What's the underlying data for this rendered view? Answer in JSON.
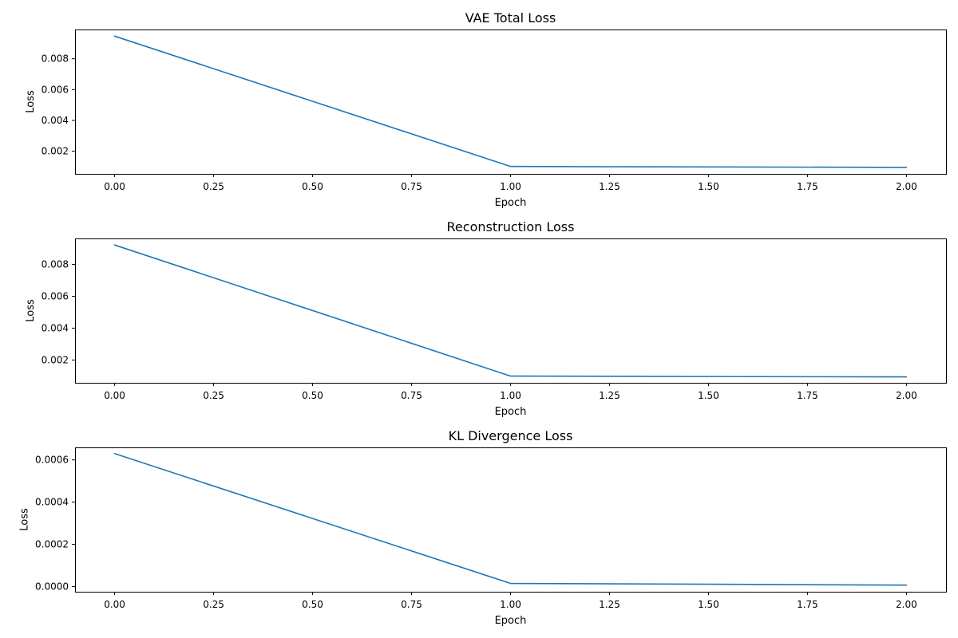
{
  "chart_data": [
    {
      "type": "line",
      "title": "VAE Total Loss",
      "xlabel": "Epoch",
      "ylabel": "Loss",
      "x": [
        0,
        1,
        2
      ],
      "series": [
        {
          "values": [
            0.00947,
            0.00101,
            0.00095
          ]
        }
      ],
      "xlim": [
        -0.1,
        2.1
      ],
      "ylim": [
        0.00053,
        0.0099
      ],
      "xticks": [
        0.0,
        0.25,
        0.5,
        0.75,
        1.0,
        1.25,
        1.5,
        1.75,
        2.0
      ],
      "xtick_labels": [
        "0.00",
        "0.25",
        "0.50",
        "0.75",
        "1.00",
        "1.25",
        "1.50",
        "1.75",
        "2.00"
      ],
      "yticks": [
        0.002,
        0.004,
        0.006,
        0.008
      ],
      "ytick_labels": [
        "0.002",
        "0.004",
        "0.006",
        "0.008"
      ],
      "grid": false,
      "line_color": "#1f77b4"
    },
    {
      "type": "line",
      "title": "Reconstruction Loss",
      "xlabel": "Epoch",
      "ylabel": "Loss",
      "x": [
        0,
        1,
        2
      ],
      "series": [
        {
          "values": [
            0.00922,
            0.00099,
            0.00094
          ]
        }
      ],
      "xlim": [
        -0.1,
        2.1
      ],
      "ylim": [
        0.00057,
        0.00963
      ],
      "xticks": [
        0.0,
        0.25,
        0.5,
        0.75,
        1.0,
        1.25,
        1.5,
        1.75,
        2.0
      ],
      "xtick_labels": [
        "0.00",
        "0.25",
        "0.50",
        "0.75",
        "1.00",
        "1.25",
        "1.50",
        "1.75",
        "2.00"
      ],
      "yticks": [
        0.002,
        0.004,
        0.006,
        0.008
      ],
      "ytick_labels": [
        "0.002",
        "0.004",
        "0.006",
        "0.008"
      ],
      "grid": false,
      "line_color": "#1f77b4"
    },
    {
      "type": "line",
      "title": "KL Divergence Loss",
      "xlabel": "Epoch",
      "ylabel": "Loss",
      "x": [
        0,
        1,
        2
      ],
      "series": [
        {
          "values": [
            0.00063,
            1.5e-05,
            7e-06
          ]
        }
      ],
      "xlim": [
        -0.1,
        2.1
      ],
      "ylim": [
        -2.45e-05,
        0.0006592
      ],
      "xticks": [
        0.0,
        0.25,
        0.5,
        0.75,
        1.0,
        1.25,
        1.5,
        1.75,
        2.0
      ],
      "xtick_labels": [
        "0.00",
        "0.25",
        "0.50",
        "0.75",
        "1.00",
        "1.25",
        "1.50",
        "1.75",
        "2.00"
      ],
      "yticks": [
        0.0,
        0.0002,
        0.0004,
        0.0006
      ],
      "ytick_labels": [
        "0.0000",
        "0.0002",
        "0.0004",
        "0.0006"
      ],
      "grid": false,
      "line_color": "#1f77b4"
    }
  ]
}
